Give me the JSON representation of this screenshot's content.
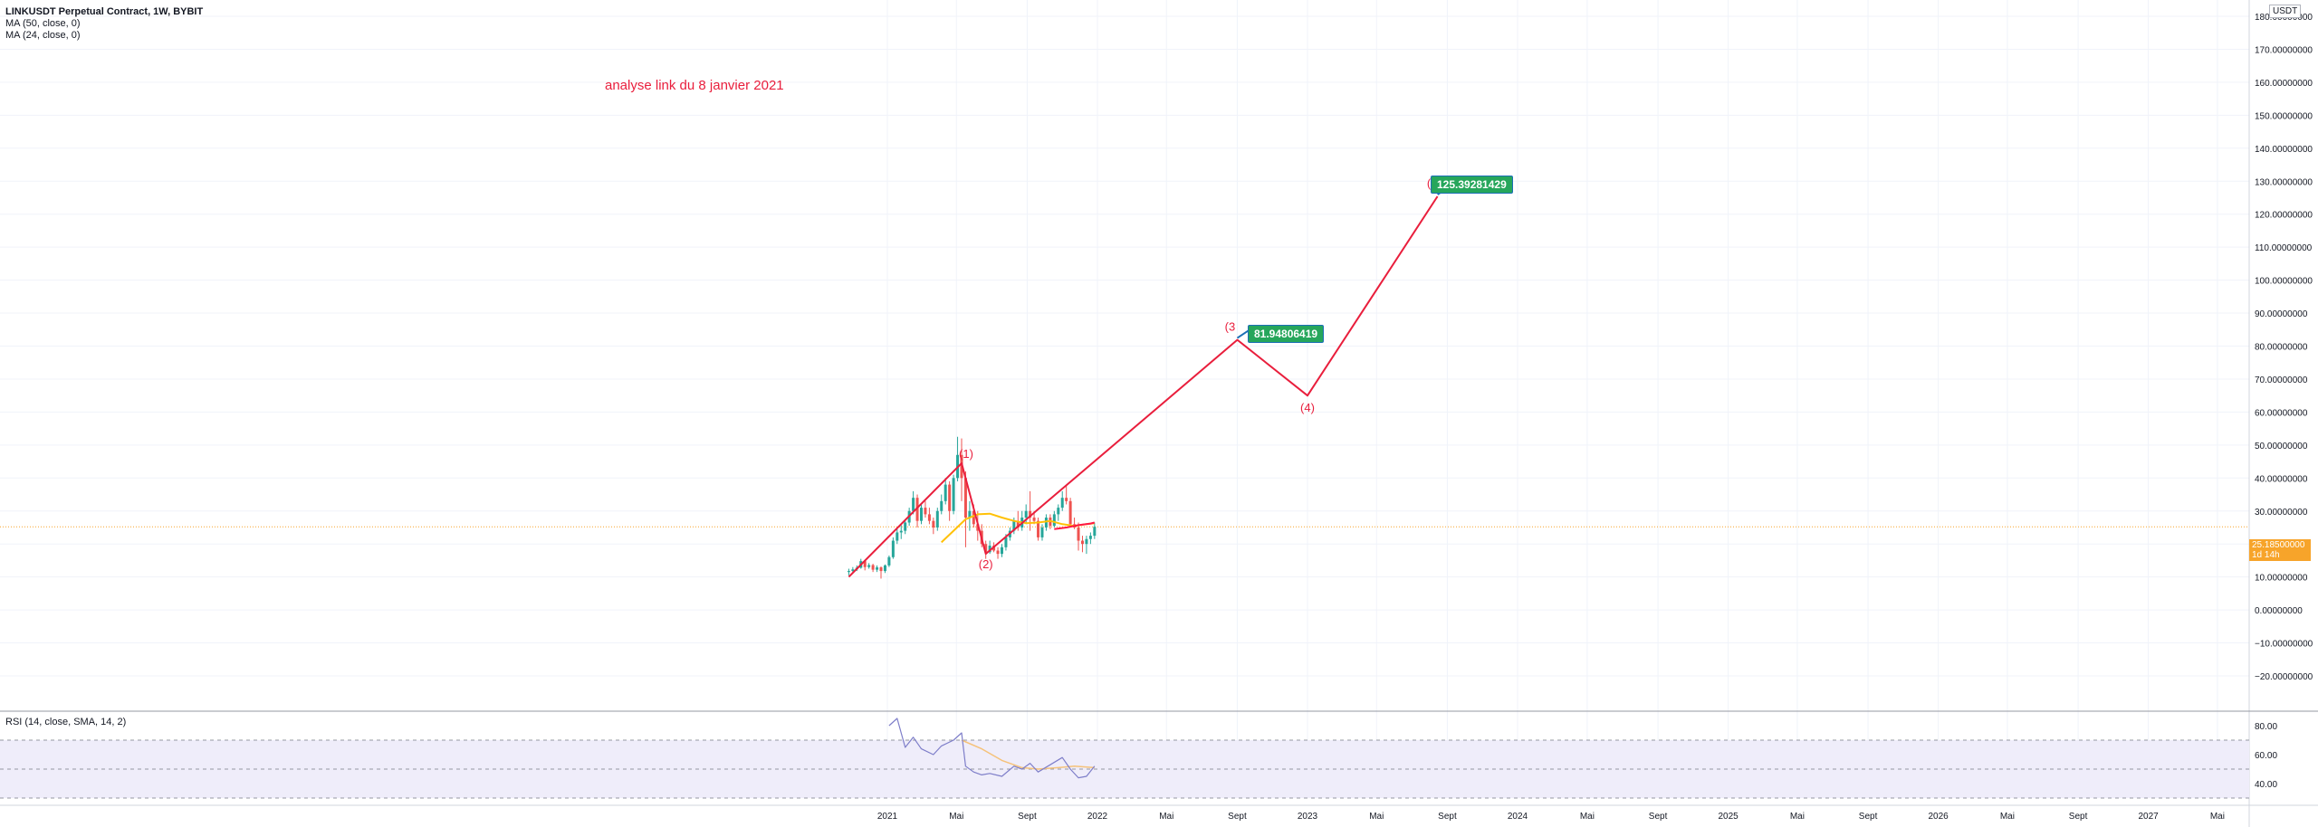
{
  "header": {
    "title": "LINKUSDT Perpetual Contract, 1W, BYBIT",
    "ma1": "MA (50, close, 0)",
    "ma2": "MA (24, close, 0)"
  },
  "annotation": "analyse link du 8 janvier 2021",
  "currency": "USDT",
  "price_tag": {
    "price": "25.18500000",
    "countdown": "1d 14h"
  },
  "colors": {
    "candle_up": "#26a69a",
    "candle_down": "#ef5350",
    "ma50": "#ff1744",
    "ma24": "#ffc107",
    "wave": "#e91e3c",
    "rsi": "#7e7ec9",
    "rsi_sma": "#f5c27a",
    "rsi_band": "#efedfa",
    "price_tag": "#f7a42a",
    "target_badge": "#26a65b"
  },
  "chart_data": [
    {
      "type": "line",
      "title": "LINKUSDT Perpetual Contract, 1W, BYBIT",
      "ylim": [
        -20,
        180
      ],
      "y_ticks": [
        -20,
        -10,
        0,
        10,
        20,
        30,
        40,
        50,
        60,
        70,
        80,
        90,
        100,
        110,
        120,
        130,
        140,
        150,
        160,
        170,
        180
      ],
      "y_tick_labels": [
        "−20.00000000",
        "−10.00000000",
        "0.00000000",
        "10.00000000",
        "20.00000000",
        "30.00000000",
        "40.00000000",
        "50.00000000",
        "60.00000000",
        "70.00000000",
        "80.00000000",
        "90.00000000",
        "100.00000000",
        "110.00000000",
        "120.00000000",
        "130.00000000",
        "140.00000000",
        "150.00000000",
        "160.00000000",
        "170.00000000",
        "180.00000000"
      ],
      "x_ticks": [
        "2021-01-01",
        "2021-05-01",
        "2021-09-01",
        "2022-01-01",
        "2022-05-01",
        "2022-09-01",
        "2023-01-01",
        "2023-05-01",
        "2023-09-01",
        "2024-01-01",
        "2024-05-01",
        "2024-09-01",
        "2025-01-01",
        "2025-05-01",
        "2025-09-01",
        "2026-01-01",
        "2026-05-01",
        "2026-09-01",
        "2027-01-01",
        "2027-05-01"
      ],
      "x_tick_labels": [
        "2021",
        "Mai",
        "Sept",
        "2022",
        "Mai",
        "Sept",
        "2023",
        "Mai",
        "Sept",
        "2024",
        "Mai",
        "Sept",
        "2025",
        "Mai",
        "Sept",
        "2026",
        "Mai",
        "Sept",
        "2027",
        "Mai"
      ],
      "series": [
        {
          "kind": "candlestick",
          "ohlc": [
            {
              "x": "2020-10-26",
              "o": 11.5,
              "h": 12.5,
              "l": 10.5,
              "c": 11.8
            },
            {
              "x": "2020-11-02",
              "o": 11.8,
              "h": 13.0,
              "l": 11.0,
              "c": 12.3
            },
            {
              "x": "2020-11-09",
              "o": 12.3,
              "h": 13.5,
              "l": 11.8,
              "c": 12.8
            },
            {
              "x": "2020-11-16",
              "o": 12.8,
              "h": 15.5,
              "l": 12.5,
              "c": 14.8
            },
            {
              "x": "2020-11-23",
              "o": 14.8,
              "h": 15.2,
              "l": 12.0,
              "c": 13.0
            },
            {
              "x": "2020-11-30",
              "o": 13.0,
              "h": 14.2,
              "l": 12.5,
              "c": 13.6
            },
            {
              "x": "2020-12-07",
              "o": 13.6,
              "h": 14.0,
              "l": 11.5,
              "c": 12.2
            },
            {
              "x": "2020-12-14",
              "o": 12.2,
              "h": 13.5,
              "l": 11.5,
              "c": 12.9
            },
            {
              "x": "2020-12-21",
              "o": 12.9,
              "h": 13.2,
              "l": 9.5,
              "c": 11.8
            },
            {
              "x": "2020-12-28",
              "o": 11.8,
              "h": 13.8,
              "l": 11.2,
              "c": 13.5
            },
            {
              "x": "2021-01-04",
              "o": 13.5,
              "h": 16.5,
              "l": 13.0,
              "c": 16.0
            },
            {
              "x": "2021-01-11",
              "o": 16.0,
              "h": 22.0,
              "l": 15.5,
              "c": 21.0
            },
            {
              "x": "2021-01-18",
              "o": 21.0,
              "h": 25.0,
              "l": 20.0,
              "c": 23.5
            },
            {
              "x": "2021-01-25",
              "o": 23.5,
              "h": 26.0,
              "l": 21.5,
              "c": 24.0
            },
            {
              "x": "2021-02-01",
              "o": 24.0,
              "h": 27.5,
              "l": 23.0,
              "c": 26.5
            },
            {
              "x": "2021-02-08",
              "o": 26.5,
              "h": 31.0,
              "l": 25.5,
              "c": 30.0
            },
            {
              "x": "2021-02-15",
              "o": 30.0,
              "h": 36.0,
              "l": 29.0,
              "c": 34.0
            },
            {
              "x": "2021-02-22",
              "o": 34.0,
              "h": 35.0,
              "l": 25.0,
              "c": 27.0
            },
            {
              "x": "2021-03-01",
              "o": 27.0,
              "h": 32.0,
              "l": 26.0,
              "c": 31.0
            },
            {
              "x": "2021-03-08",
              "o": 31.0,
              "h": 33.0,
              "l": 28.0,
              "c": 29.0
            },
            {
              "x": "2021-03-15",
              "o": 29.0,
              "h": 31.0,
              "l": 26.0,
              "c": 27.0
            },
            {
              "x": "2021-03-22",
              "o": 27.0,
              "h": 28.0,
              "l": 23.0,
              "c": 25.0
            },
            {
              "x": "2021-03-29",
              "o": 25.0,
              "h": 31.0,
              "l": 24.0,
              "c": 30.0
            },
            {
              "x": "2021-04-05",
              "o": 30.0,
              "h": 35.0,
              "l": 29.0,
              "c": 33.0
            },
            {
              "x": "2021-04-12",
              "o": 33.0,
              "h": 40.0,
              "l": 32.0,
              "c": 38.0
            },
            {
              "x": "2021-04-19",
              "o": 38.0,
              "h": 39.0,
              "l": 27.0,
              "c": 30.0
            },
            {
              "x": "2021-04-26",
              "o": 30.0,
              "h": 41.0,
              "l": 29.0,
              "c": 40.0
            },
            {
              "x": "2021-05-03",
              "o": 40.0,
              "h": 52.5,
              "l": 39.0,
              "c": 47.0
            },
            {
              "x": "2021-05-10",
              "o": 47.0,
              "h": 52.0,
              "l": 33.0,
              "c": 40.0
            },
            {
              "x": "2021-05-17",
              "o": 40.0,
              "h": 42.0,
              "l": 19.0,
              "c": 28.0
            },
            {
              "x": "2021-05-24",
              "o": 28.0,
              "h": 33.0,
              "l": 24.0,
              "c": 30.0
            },
            {
              "x": "2021-05-31",
              "o": 30.0,
              "h": 32.0,
              "l": 25.0,
              "c": 26.0
            },
            {
              "x": "2021-06-07",
              "o": 26.0,
              "h": 30.0,
              "l": 21.0,
              "c": 24.0
            },
            {
              "x": "2021-06-14",
              "o": 24.0,
              "h": 26.0,
              "l": 19.0,
              "c": 20.0
            },
            {
              "x": "2021-06-21",
              "o": 20.0,
              "h": 21.0,
              "l": 15.5,
              "c": 17.5
            },
            {
              "x": "2021-06-28",
              "o": 17.5,
              "h": 21.0,
              "l": 17.0,
              "c": 19.5
            },
            {
              "x": "2021-07-05",
              "o": 19.5,
              "h": 20.5,
              "l": 17.5,
              "c": 18.0
            },
            {
              "x": "2021-07-12",
              "o": 18.0,
              "h": 19.0,
              "l": 15.5,
              "c": 17.0
            },
            {
              "x": "2021-07-19",
              "o": 17.0,
              "h": 20.0,
              "l": 16.0,
              "c": 19.0
            },
            {
              "x": "2021-07-26",
              "o": 19.0,
              "h": 23.0,
              "l": 18.0,
              "c": 22.0
            },
            {
              "x": "2021-08-02",
              "o": 22.0,
              "h": 25.0,
              "l": 21.0,
              "c": 24.0
            },
            {
              "x": "2021-08-09",
              "o": 24.0,
              "h": 28.0,
              "l": 23.0,
              "c": 27.0
            },
            {
              "x": "2021-08-16",
              "o": 27.0,
              "h": 30.0,
              "l": 24.0,
              "c": 25.0
            },
            {
              "x": "2021-08-23",
              "o": 25.0,
              "h": 30.0,
              "l": 24.0,
              "c": 28.0
            },
            {
              "x": "2021-08-30",
              "o": 28.0,
              "h": 32.0,
              "l": 26.0,
              "c": 30.0
            },
            {
              "x": "2021-09-06",
              "o": 30.0,
              "h": 36.0,
              "l": 24.0,
              "c": 28.0
            },
            {
              "x": "2021-09-13",
              "o": 28.0,
              "h": 30.0,
              "l": 26.0,
              "c": 27.0
            },
            {
              "x": "2021-09-20",
              "o": 27.0,
              "h": 28.0,
              "l": 21.0,
              "c": 22.0
            },
            {
              "x": "2021-09-27",
              "o": 22.0,
              "h": 26.0,
              "l": 21.0,
              "c": 25.0
            },
            {
              "x": "2021-10-04",
              "o": 25.0,
              "h": 29.0,
              "l": 24.0,
              "c": 28.0
            },
            {
              "x": "2021-10-11",
              "o": 28.0,
              "h": 29.0,
              "l": 24.5,
              "c": 25.5
            },
            {
              "x": "2021-10-18",
              "o": 25.5,
              "h": 30.0,
              "l": 25.0,
              "c": 29.0
            },
            {
              "x": "2021-10-25",
              "o": 29.0,
              "h": 32.0,
              "l": 27.0,
              "c": 31.0
            },
            {
              "x": "2021-11-01",
              "o": 31.0,
              "h": 36.0,
              "l": 30.0,
              "c": 34.0
            },
            {
              "x": "2021-11-08",
              "o": 34.0,
              "h": 38.0,
              "l": 32.0,
              "c": 33.0
            },
            {
              "x": "2021-11-15",
              "o": 33.0,
              "h": 34.0,
              "l": 25.0,
              "c": 26.0
            },
            {
              "x": "2021-11-22",
              "o": 26.0,
              "h": 28.0,
              "l": 24.5,
              "c": 25.0
            },
            {
              "x": "2021-11-29",
              "o": 25.0,
              "h": 26.5,
              "l": 18.0,
              "c": 21.0
            },
            {
              "x": "2021-12-06",
              "o": 21.0,
              "h": 22.5,
              "l": 17.5,
              "c": 20.0
            },
            {
              "x": "2021-12-13",
              "o": 20.0,
              "h": 22.5,
              "l": 17.0,
              "c": 21.5
            },
            {
              "x": "2021-12-20",
              "o": 21.5,
              "h": 23.5,
              "l": 20.0,
              "c": 22.5
            },
            {
              "x": "2021-12-27",
              "o": 22.5,
              "h": 26.5,
              "l": 21.5,
              "c": 25.2
            }
          ]
        },
        {
          "kind": "line",
          "name": "MA (24, close, 0)",
          "color": "#ffc107",
          "points": [
            {
              "x": "2021-04-05",
              "y": 20.5
            },
            {
              "x": "2021-04-26",
              "y": 24.0
            },
            {
              "x": "2021-05-17",
              "y": 27.5
            },
            {
              "x": "2021-06-07",
              "y": 29.0
            },
            {
              "x": "2021-06-28",
              "y": 29.2
            },
            {
              "x": "2021-07-19",
              "y": 28.0
            },
            {
              "x": "2021-08-09",
              "y": 27.0
            },
            {
              "x": "2021-08-30",
              "y": 26.3
            },
            {
              "x": "2021-09-20",
              "y": 26.5
            },
            {
              "x": "2021-10-11",
              "y": 27.0
            },
            {
              "x": "2021-11-01",
              "y": 26.0
            },
            {
              "x": "2021-11-22",
              "y": 25.5
            },
            {
              "x": "2021-12-13",
              "y": 26.0
            },
            {
              "x": "2021-12-27",
              "y": 26.3
            }
          ]
        },
        {
          "kind": "line",
          "name": "MA (50, close, 0)",
          "color": "#ff1744",
          "points": [
            {
              "x": "2021-10-18",
              "y": 24.5
            },
            {
              "x": "2021-11-08",
              "y": 25.0
            },
            {
              "x": "2021-11-29",
              "y": 25.7
            },
            {
              "x": "2021-12-20",
              "y": 26.2
            },
            {
              "x": "2021-12-27",
              "y": 26.5
            }
          ]
        },
        {
          "kind": "line",
          "role": "elliott-wave-projection",
          "color": "#e91e3c",
          "points": [
            {
              "x": "2020-10-26",
              "y": 10.0
            },
            {
              "x": "2021-05-10",
              "y": 44.5
            },
            {
              "x": "2021-06-21",
              "y": 17.0
            },
            {
              "x": "2022-09-01",
              "y": 81.9
            },
            {
              "x": "2023-01-01",
              "y": 65.0
            },
            {
              "x": "2023-08-15",
              "y": 125.4
            }
          ],
          "labels": [
            "",
            "(1)",
            "(2)",
            "(3",
            "(4)",
            "(5"
          ]
        }
      ],
      "horizontal_line": {
        "y": 25.185,
        "color": "#f7a42a"
      },
      "targets": [
        {
          "x": "2022-09-01",
          "y": 81.9,
          "text": "81.94806419"
        },
        {
          "x": "2023-08-15",
          "y": 125.4,
          "text": "125.39281429"
        }
      ]
    },
    {
      "type": "line",
      "title": "RSI (14, close, SMA, 14, 2)",
      "ylim": [
        27,
        92
      ],
      "y_ticks": [
        40,
        60,
        80
      ],
      "y_tick_labels": [
        "40.00",
        "60.00",
        "80.00"
      ],
      "bands": {
        "upper": 70,
        "middle": 50,
        "lower": 30
      },
      "series": [
        {
          "kind": "line",
          "role": "rsi",
          "color": "#7e7ec9",
          "points": [
            {
              "x": "2021-01-04",
              "y": 80
            },
            {
              "x": "2021-01-18",
              "y": 85
            },
            {
              "x": "2021-02-01",
              "y": 65
            },
            {
              "x": "2021-02-15",
              "y": 72
            },
            {
              "x": "2021-03-01",
              "y": 64
            },
            {
              "x": "2021-03-22",
              "y": 60
            },
            {
              "x": "2021-04-05",
              "y": 66
            },
            {
              "x": "2021-04-26",
              "y": 70
            },
            {
              "x": "2021-05-10",
              "y": 75
            },
            {
              "x": "2021-05-17",
              "y": 52
            },
            {
              "x": "2021-05-31",
              "y": 48
            },
            {
              "x": "2021-06-14",
              "y": 46
            },
            {
              "x": "2021-06-28",
              "y": 47
            },
            {
              "x": "2021-07-19",
              "y": 45
            },
            {
              "x": "2021-08-09",
              "y": 52
            },
            {
              "x": "2021-08-23",
              "y": 50
            },
            {
              "x": "2021-09-06",
              "y": 54
            },
            {
              "x": "2021-09-20",
              "y": 48
            },
            {
              "x": "2021-10-11",
              "y": 53
            },
            {
              "x": "2021-11-01",
              "y": 58
            },
            {
              "x": "2021-11-15",
              "y": 50
            },
            {
              "x": "2021-11-29",
              "y": 44
            },
            {
              "x": "2021-12-13",
              "y": 45
            },
            {
              "x": "2021-12-27",
              "y": 52
            }
          ]
        },
        {
          "kind": "line",
          "role": "rsi-sma",
          "color": "#f5c27a",
          "points": [
            {
              "x": "2021-05-10",
              "y": 70
            },
            {
              "x": "2021-06-14",
              "y": 64
            },
            {
              "x": "2021-07-19",
              "y": 56
            },
            {
              "x": "2021-08-23",
              "y": 51
            },
            {
              "x": "2021-09-20",
              "y": 50
            },
            {
              "x": "2021-10-25",
              "y": 51
            },
            {
              "x": "2021-11-22",
              "y": 52
            },
            {
              "x": "2021-12-27",
              "y": 51
            }
          ]
        }
      ]
    }
  ]
}
